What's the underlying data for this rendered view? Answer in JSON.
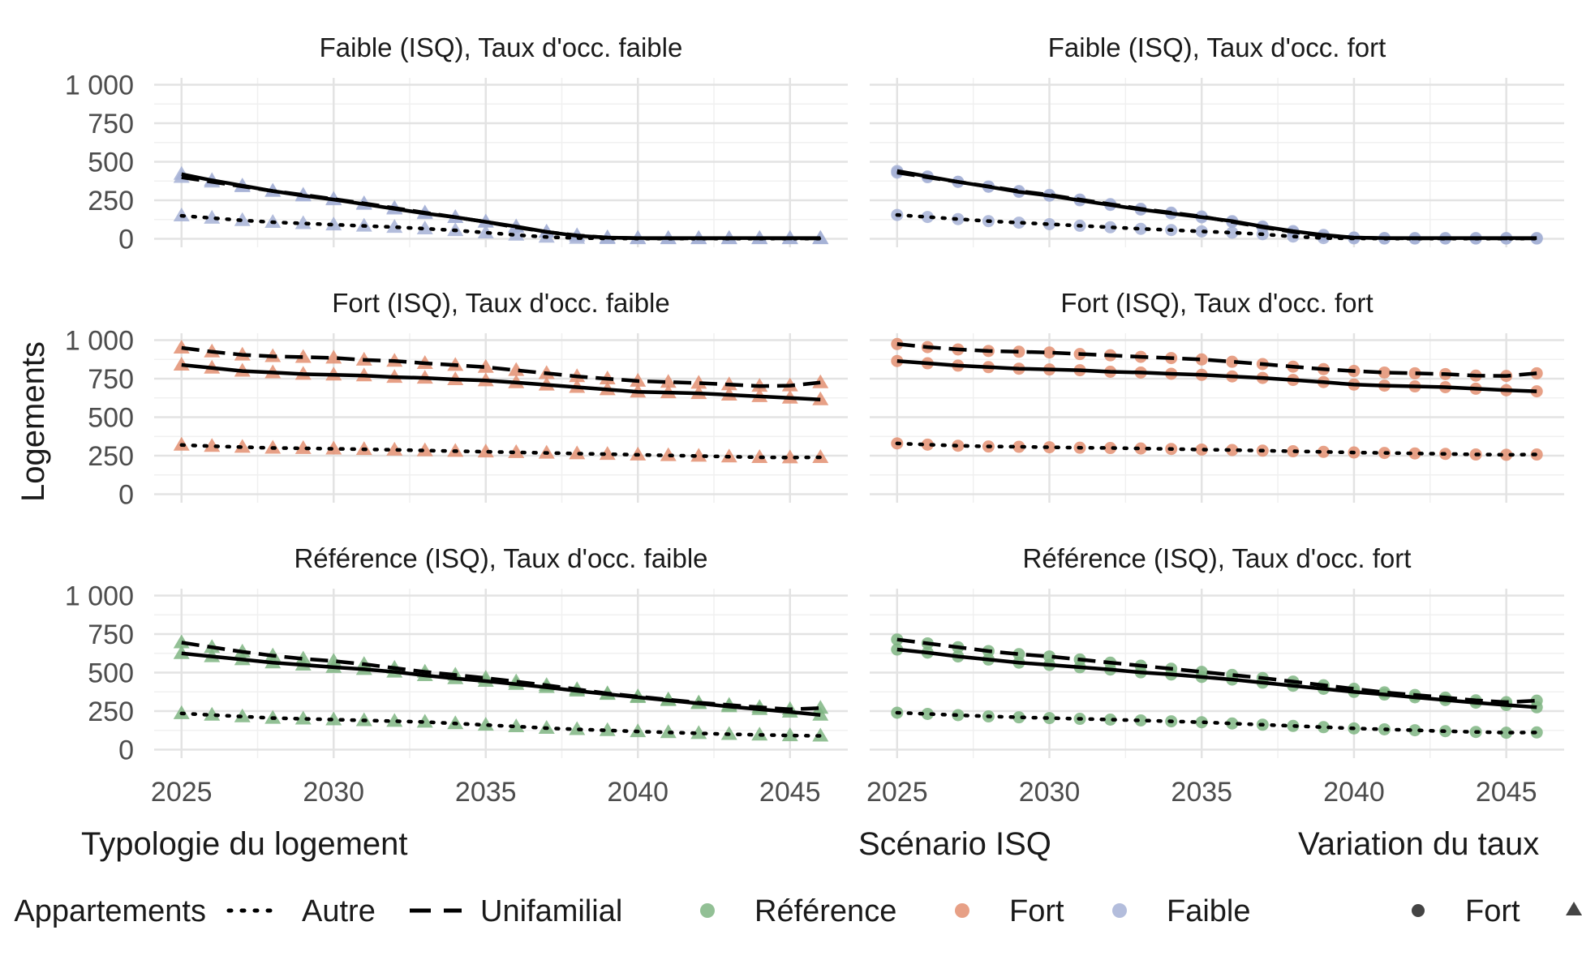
{
  "chart_data": {
    "type": "line",
    "ylabel": "Logements",
    "xlabel": "",
    "x_range": [
      2025,
      2046
    ],
    "ylim": [
      0,
      1000
    ],
    "x_ticks": [
      "2025",
      "2030",
      "2035",
      "2040",
      "2045"
    ],
    "y_ticks": [
      "0",
      "250",
      "500",
      "750",
      "1 000"
    ],
    "years": [
      2025,
      2026,
      2027,
      2028,
      2029,
      2030,
      2031,
      2032,
      2033,
      2034,
      2035,
      2036,
      2037,
      2038,
      2039,
      2040,
      2041,
      2042,
      2043,
      2044,
      2045,
      2046
    ],
    "grid": true,
    "legend": {
      "position": "bottom",
      "groups": [
        {
          "title": "Typologie du logement",
          "items": [
            {
              "label": "Appartements",
              "linetype": "solid"
            },
            {
              "label": "Autre",
              "linetype": "dotted"
            },
            {
              "label": "Unifamilial",
              "linetype": "longdash"
            }
          ]
        },
        {
          "title": "Scénario ISQ",
          "items": [
            {
              "label": "Référence",
              "color": "#7fb583"
            },
            {
              "label": "Fort",
              "color": "#e38f71"
            },
            {
              "label": "Faible",
              "color": "#a6b1d6"
            }
          ]
        },
        {
          "title": "Variation du taux",
          "items": [
            {
              "label": "Fort",
              "shape": "circle"
            },
            {
              "label": "",
              "shape": "triangle"
            }
          ]
        }
      ]
    },
    "panels": [
      {
        "title": "Faible (ISQ), Taux d'occ. faible",
        "scenario_color": "#a6b1d6",
        "shape": "triangle",
        "series": [
          {
            "name": "Appartements",
            "values": [
              420,
              380,
              345,
              310,
              280,
              255,
              225,
              195,
              165,
              140,
              110,
              80,
              45,
              20,
              8,
              5,
              5,
              5,
              5,
              5,
              5,
              5
            ]
          },
          {
            "name": "Autre",
            "values": [
              150,
              135,
              120,
              108,
              100,
              92,
              84,
              76,
              66,
              55,
              40,
              25,
              12,
              5,
              3,
              2,
              2,
              2,
              2,
              2,
              2,
              2
            ]
          },
          {
            "name": "Unifamilial",
            "values": [
              400,
              370,
              340,
              310,
              285,
              258,
              230,
              200,
              170,
              140,
              110,
              75,
              45,
              22,
              8,
              4,
              3,
              3,
              3,
              3,
              3,
              3
            ]
          }
        ]
      },
      {
        "title": "Faible (ISQ), Taux d'occ. fort",
        "scenario_color": "#a6b1d6",
        "shape": "circle",
        "series": [
          {
            "name": "Appartements",
            "values": [
              440,
              405,
              370,
              338,
              305,
              280,
              250,
              220,
              190,
              165,
              140,
              115,
              80,
              50,
              25,
              8,
              5,
              5,
              5,
              5,
              5,
              5
            ]
          },
          {
            "name": "Autre",
            "values": [
              155,
              142,
              128,
              115,
              105,
              95,
              85,
              75,
              65,
              57,
              48,
              40,
              30,
              15,
              5,
              3,
              2,
              2,
              2,
              2,
              2,
              2
            ]
          },
          {
            "name": "Unifamilial",
            "values": [
              430,
              400,
              370,
              340,
              310,
              285,
              255,
              225,
              195,
              170,
              145,
              110,
              75,
              45,
              20,
              8,
              4,
              3,
              3,
              3,
              3,
              3
            ]
          }
        ]
      },
      {
        "title": "Fort (ISQ), Taux d'occ. faible",
        "scenario_color": "#e38f71",
        "shape": "triangle",
        "series": [
          {
            "name": "Appartements",
            "values": [
              840,
              820,
              800,
              790,
              780,
              775,
              770,
              760,
              755,
              745,
              738,
              725,
              710,
              695,
              680,
              665,
              660,
              655,
              645,
              635,
              625,
              615
            ]
          },
          {
            "name": "Autre",
            "values": [
              320,
              312,
              306,
              300,
              298,
              295,
              292,
              288,
              284,
              280,
              276,
              272,
              268,
              264,
              260,
              256,
              252,
              248,
              244,
              240,
              238,
              240
            ]
          },
          {
            "name": "Unifamilial",
            "values": [
              950,
              925,
              905,
              895,
              890,
              885,
              872,
              865,
              850,
              838,
              825,
              805,
              785,
              765,
              750,
              735,
              728,
              722,
              712,
              702,
              705,
              725
            ]
          }
        ]
      },
      {
        "title": "Fort (ISQ), Taux d'occ. fort",
        "scenario_color": "#e38f71",
        "shape": "circle",
        "series": [
          {
            "name": "Appartements",
            "values": [
              865,
              850,
              835,
              825,
              815,
              810,
              805,
              795,
              790,
              782,
              775,
              765,
              755,
              742,
              728,
              712,
              705,
              700,
              695,
              685,
              675,
              668
            ]
          },
          {
            "name": "Autre",
            "values": [
              330,
              322,
              315,
              310,
              308,
              305,
              302,
              300,
              297,
              294,
              290,
              287,
              283,
              279,
              275,
              271,
              268,
              265,
              262,
              258,
              256,
              258
            ]
          },
          {
            "name": "Unifamilial",
            "values": [
              975,
              955,
              940,
              930,
              925,
              920,
              910,
              902,
              892,
              884,
              875,
              860,
              845,
              828,
              812,
              800,
              790,
              785,
              780,
              770,
              768,
              785
            ]
          }
        ]
      },
      {
        "title": "Référence (ISQ), Taux d'occ. faible",
        "scenario_color": "#7fb583",
        "shape": "triangle",
        "series": [
          {
            "name": "Appartements",
            "values": [
              625,
              605,
              585,
              565,
              550,
              535,
              522,
              505,
              482,
              462,
              445,
              425,
              405,
              382,
              360,
              340,
              320,
              300,
              280,
              262,
              245,
              225
            ]
          },
          {
            "name": "Autre",
            "values": [
              235,
              225,
              215,
              205,
              200,
              195,
              190,
              185,
              180,
              170,
              160,
              150,
              140,
              132,
              125,
              118,
              112,
              106,
              100,
              96,
              92,
              90
            ]
          },
          {
            "name": "Unifamilial",
            "values": [
              695,
              665,
              635,
              610,
              590,
              575,
              555,
              530,
              505,
              485,
              465,
              442,
              418,
              392,
              365,
              345,
              325,
              305,
              290,
              275,
              262,
              270
            ]
          }
        ]
      },
      {
        "title": "Référence (ISQ), Taux d'occ. fort",
        "scenario_color": "#7fb583",
        "shape": "circle",
        "series": [
          {
            "name": "Appartements",
            "values": [
              650,
              630,
              605,
              585,
              565,
              550,
              535,
              520,
              502,
              488,
              472,
              455,
              435,
              415,
              395,
              375,
              358,
              340,
              322,
              305,
              290,
              275
            ]
          },
          {
            "name": "Autre",
            "values": [
              240,
              232,
              224,
              216,
              210,
              205,
              200,
              195,
              190,
              184,
              178,
              170,
              162,
              154,
              146,
              138,
              132,
              126,
              120,
              115,
              110,
              112
            ]
          },
          {
            "name": "Unifamilial",
            "values": [
              715,
              690,
              665,
              640,
              620,
              605,
              585,
              565,
              545,
              525,
              505,
              485,
              465,
              442,
              418,
              395,
              372,
              355,
              338,
              320,
              308,
              318
            ]
          }
        ]
      }
    ]
  }
}
